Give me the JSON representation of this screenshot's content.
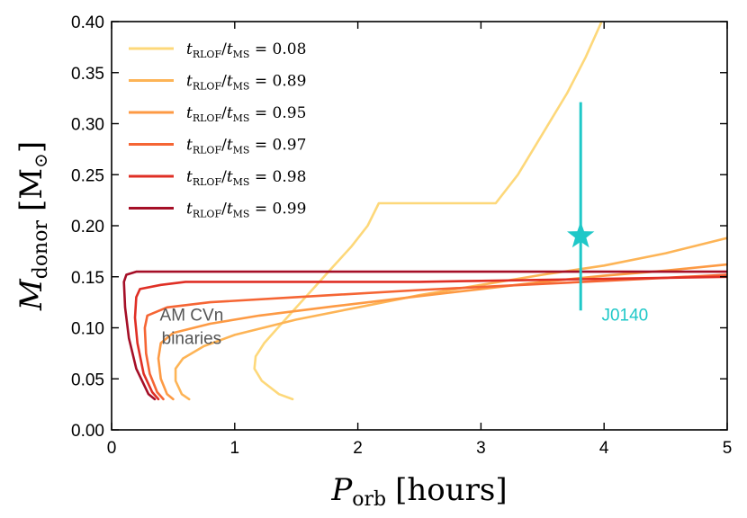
{
  "chart_data": {
    "type": "line",
    "xlabel": "P_orb [hours]",
    "ylabel": "M_donor [M_⊙]",
    "xlabel_main": "P",
    "xlabel_sub": "orb",
    "xlabel_unit": "[hours]",
    "ylabel_main": "M",
    "ylabel_sub": "donor",
    "ylabel_unit_open": "[M",
    "ylabel_unit_sym": "⊙",
    "ylabel_unit_close": "]",
    "xlim": [
      0,
      5
    ],
    "ylim": [
      0,
      0.4
    ],
    "xticks": [
      0,
      1,
      2,
      3,
      4,
      5
    ],
    "xtick_labels": [
      "0",
      "1",
      "2",
      "3",
      "4",
      "5"
    ],
    "yticks": [
      0,
      0.05,
      0.1,
      0.15,
      0.2,
      0.25,
      0.3,
      0.35,
      0.4
    ],
    "ytick_labels": [
      "0.00",
      "0.05",
      "0.10",
      "0.15",
      "0.20",
      "0.25",
      "0.30",
      "0.35",
      "0.40"
    ],
    "legend_position": "top-left",
    "series": [
      {
        "name": "t_RLOF/t_MS = 0.08",
        "label_sub": "RLOF",
        "label_sub2": "MS",
        "label_value": "0.08",
        "color": "#fdd87a",
        "points": [
          [
            1.47,
            0.03
          ],
          [
            1.36,
            0.035
          ],
          [
            1.22,
            0.048
          ],
          [
            1.16,
            0.06
          ],
          [
            1.17,
            0.072
          ],
          [
            1.24,
            0.085
          ],
          [
            1.35,
            0.1
          ],
          [
            1.5,
            0.12
          ],
          [
            1.65,
            0.14
          ],
          [
            1.8,
            0.16
          ],
          [
            1.95,
            0.18
          ],
          [
            2.08,
            0.2
          ],
          [
            2.17,
            0.222
          ],
          [
            2.2,
            0.222
          ],
          [
            3.12,
            0.222
          ],
          [
            3.3,
            0.25
          ],
          [
            3.5,
            0.29
          ],
          [
            3.7,
            0.33
          ],
          [
            3.85,
            0.365
          ],
          [
            3.98,
            0.4
          ]
        ]
      },
      {
        "name": "t_RLOF/t_MS = 0.89",
        "label_sub": "RLOF",
        "label_sub2": "MS",
        "label_value": "0.89",
        "color": "#fdb456",
        "points": [
          [
            0.63,
            0.03
          ],
          [
            0.57,
            0.035
          ],
          [
            0.52,
            0.048
          ],
          [
            0.52,
            0.06
          ],
          [
            0.58,
            0.07
          ],
          [
            0.75,
            0.082
          ],
          [
            1.0,
            0.093
          ],
          [
            1.5,
            0.108
          ],
          [
            2.0,
            0.12
          ],
          [
            2.5,
            0.132
          ],
          [
            3.0,
            0.142
          ],
          [
            3.5,
            0.152
          ],
          [
            4.0,
            0.161
          ],
          [
            4.5,
            0.173
          ],
          [
            5.0,
            0.188
          ]
        ]
      },
      {
        "name": "t_RLOF/t_MS = 0.95",
        "label_sub": "RLOF",
        "label_sub2": "MS",
        "label_value": "0.95",
        "color": "#fd9a44",
        "points": [
          [
            0.5,
            0.03
          ],
          [
            0.45,
            0.035
          ],
          [
            0.4,
            0.05
          ],
          [
            0.38,
            0.07
          ],
          [
            0.4,
            0.085
          ],
          [
            0.5,
            0.095
          ],
          [
            0.8,
            0.104
          ],
          [
            1.2,
            0.112
          ],
          [
            1.8,
            0.121
          ],
          [
            2.5,
            0.131
          ],
          [
            3.0,
            0.138
          ],
          [
            3.5,
            0.145
          ],
          [
            4.0,
            0.151
          ],
          [
            4.5,
            0.156
          ],
          [
            5.0,
            0.162
          ]
        ]
      },
      {
        "name": "t_RLOF/t_MS = 0.97",
        "label_sub": "RLOF",
        "label_sub2": "MS",
        "label_value": "0.97",
        "color": "#f56534",
        "points": [
          [
            0.42,
            0.03
          ],
          [
            0.37,
            0.037
          ],
          [
            0.31,
            0.055
          ],
          [
            0.28,
            0.075
          ],
          [
            0.27,
            0.1
          ],
          [
            0.29,
            0.112
          ],
          [
            0.45,
            0.12
          ],
          [
            0.8,
            0.125
          ],
          [
            1.5,
            0.13
          ],
          [
            2.5,
            0.137
          ],
          [
            3.0,
            0.14
          ],
          [
            3.5,
            0.143
          ],
          [
            4.0,
            0.146
          ],
          [
            4.5,
            0.149
          ],
          [
            5.0,
            0.152
          ]
        ]
      },
      {
        "name": "t_RLOF/t_MS = 0.98",
        "label_sub": "RLOF",
        "label_sub2": "MS",
        "label_value": "0.98",
        "color": "#df2f25",
        "points": [
          [
            0.38,
            0.03
          ],
          [
            0.33,
            0.037
          ],
          [
            0.26,
            0.055
          ],
          [
            0.21,
            0.085
          ],
          [
            0.19,
            0.11
          ],
          [
            0.2,
            0.13
          ],
          [
            0.23,
            0.138
          ],
          [
            0.4,
            0.142
          ],
          [
            0.6,
            0.145
          ],
          [
            1.5,
            0.145
          ],
          [
            2.5,
            0.145
          ],
          [
            3.0,
            0.146
          ],
          [
            3.5,
            0.147
          ],
          [
            4.0,
            0.148
          ],
          [
            4.5,
            0.149
          ],
          [
            5.0,
            0.15
          ]
        ]
      },
      {
        "name": "t_RLOF/t_MS = 0.99",
        "label_sub": "RLOF",
        "label_sub2": "MS",
        "label_value": "0.99",
        "color": "#a50f27",
        "points": [
          [
            0.35,
            0.03
          ],
          [
            0.3,
            0.035
          ],
          [
            0.2,
            0.06
          ],
          [
            0.14,
            0.09
          ],
          [
            0.11,
            0.12
          ],
          [
            0.1,
            0.145
          ],
          [
            0.12,
            0.152
          ],
          [
            0.2,
            0.155
          ],
          [
            1.0,
            0.155
          ],
          [
            2.0,
            0.155
          ],
          [
            3.0,
            0.155
          ],
          [
            4.0,
            0.155
          ],
          [
            5.0,
            0.155
          ]
        ]
      }
    ],
    "marker": {
      "label": "J0140",
      "x": 3.81,
      "y": 0.19,
      "yerr_low": 0.117,
      "yerr_high": 0.321,
      "color": "#1fc8c8"
    },
    "annotations": [
      {
        "line1": "AM CVn",
        "line2": "binaries",
        "x": 0.65,
        "y_line1": 0.107,
        "y_line2": 0.084,
        "color": "#555555"
      }
    ],
    "marker_label": {
      "text": "J0140",
      "x": 3.98,
      "y": 0.107
    }
  }
}
